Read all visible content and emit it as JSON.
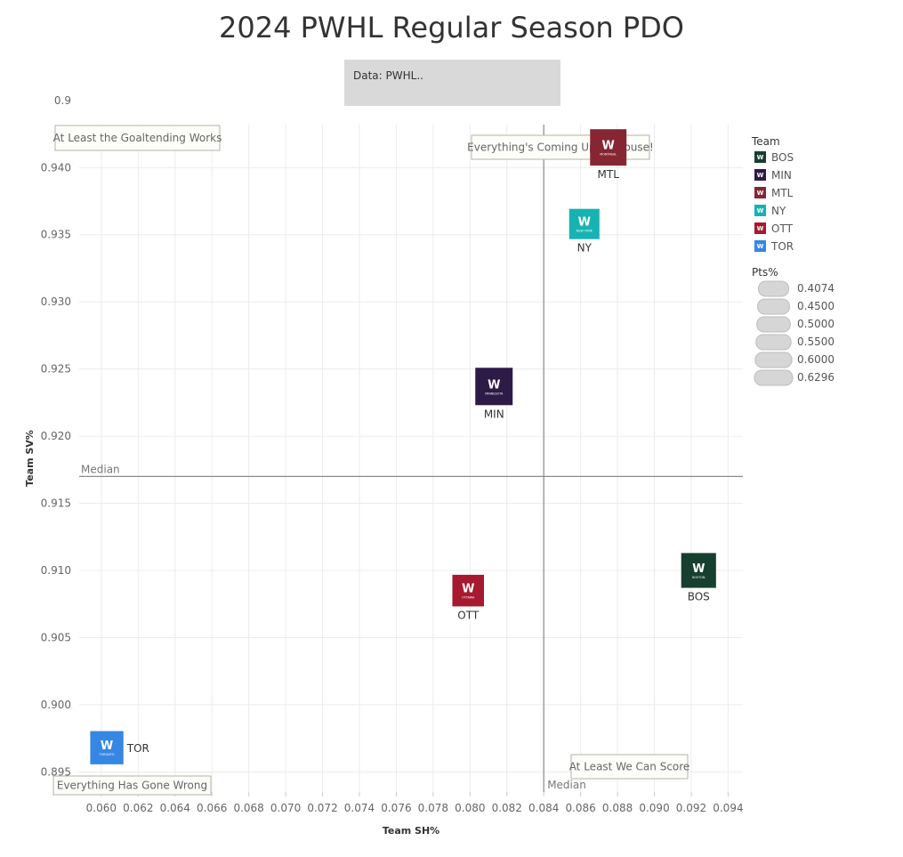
{
  "title": "2024 PWHL Regular Season PDO",
  "source": "Data: PWHL..",
  "chart_data": {
    "type": "scatter",
    "title": "2024 PWHL Regular Season PDO",
    "xlabel": "Team SH%",
    "ylabel": "Team SV%",
    "xlim": [
      0.0588,
      0.0948
    ],
    "ylim": [
      0.8935,
      0.9432
    ],
    "x_ticks": [
      "0.060",
      "0.062",
      "0.064",
      "0.066",
      "0.068",
      "0.070",
      "0.072",
      "0.074",
      "0.076",
      "0.078",
      "0.080",
      "0.082",
      "0.084",
      "0.086",
      "0.088",
      "0.090",
      "0.092",
      "0.094"
    ],
    "y_ticks": [
      "0.895",
      "0.900",
      "0.905",
      "0.910",
      "0.915",
      "0.920",
      "0.925",
      "0.930",
      "0.935",
      "0.940"
    ],
    "top_tick_partial": "0.9",
    "grid": true,
    "points": [
      {
        "team": "BOS",
        "x": 0.0924,
        "y": 0.91,
        "pts_pct": 0.55,
        "color": "#173f2f",
        "logo_text": "BOSTON"
      },
      {
        "team": "MIN",
        "x": 0.0813,
        "y": 0.9237,
        "pts_pct": 0.6296,
        "color": "#2e1a47",
        "logo_text": "MINNESOTA"
      },
      {
        "team": "MTL",
        "x": 0.0875,
        "y": 0.9415,
        "pts_pct": 0.6,
        "color": "#862633",
        "logo_text": "MONTREAL"
      },
      {
        "team": "NY",
        "x": 0.0862,
        "y": 0.9358,
        "pts_pct": 0.4074,
        "color": "#17b2b2",
        "logo_text": "NEW YORK"
      },
      {
        "team": "OTT",
        "x": 0.0799,
        "y": 0.9085,
        "pts_pct": 0.45,
        "color": "#a6192e",
        "logo_text": "OTTAWA"
      },
      {
        "team": "TOR",
        "x": 0.0603,
        "y": 0.8968,
        "pts_pct": 0.5,
        "color": "#3587e3",
        "logo_text": "TORONTO"
      }
    ],
    "median_x": 0.084,
    "median_y": 0.917,
    "median_label": "Median",
    "annotations": {
      "top_left": "At Least the Goaltending Works",
      "top_right": "Everything's Coming Up Millhouse!",
      "bottom_left": "Everything Has Gone Wrong",
      "bottom_right": "At Least We Can Score"
    },
    "legend": {
      "team_title": "Team",
      "teams": [
        {
          "name": "BOS",
          "color": "#173f2f"
        },
        {
          "name": "MIN",
          "color": "#2e1a47"
        },
        {
          "name": "MTL",
          "color": "#862633"
        },
        {
          "name": "NY",
          "color": "#17b2b2"
        },
        {
          "name": "OTT",
          "color": "#a6192e"
        },
        {
          "name": "TOR",
          "color": "#3587e3"
        }
      ],
      "size_title": "Pts%",
      "sizes": [
        "0.4074",
        "0.4500",
        "0.5000",
        "0.5500",
        "0.6000",
        "0.6296"
      ]
    }
  }
}
